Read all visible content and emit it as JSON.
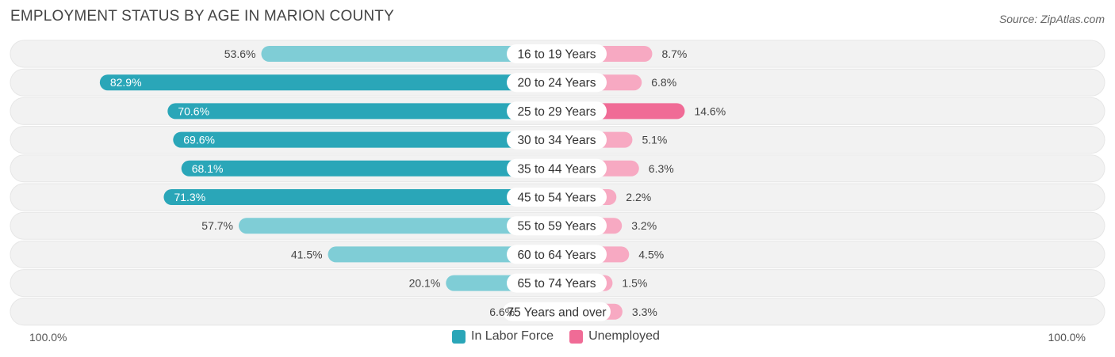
{
  "header": {
    "title": "EMPLOYMENT STATUS BY AGE IN MARION COUNTY",
    "source": "Source: ZipAtlas.com"
  },
  "axis": {
    "left_label": "100.0%",
    "right_label": "100.0%"
  },
  "legend": {
    "items": [
      {
        "label": "In Labor Force",
        "color": "#2aa6b8"
      },
      {
        "label": "Unemployed",
        "color": "#f06b96"
      }
    ]
  },
  "chart_data": {
    "type": "bar",
    "orientation": "diverging-horizontal",
    "title": "EMPLOYMENT STATUS BY AGE IN MARION COUNTY",
    "categories": [
      "16 to 19 Years",
      "20 to 24 Years",
      "25 to 29 Years",
      "30 to 34 Years",
      "35 to 44 Years",
      "45 to 54 Years",
      "55 to 59 Years",
      "60 to 64 Years",
      "65 to 74 Years",
      "75 Years and over"
    ],
    "series": [
      {
        "name": "In Labor Force",
        "values": [
          53.6,
          82.9,
          70.6,
          69.6,
          68.1,
          71.3,
          57.7,
          41.5,
          20.1,
          6.6
        ],
        "labels": [
          "53.6%",
          "82.9%",
          "70.6%",
          "69.6%",
          "68.1%",
          "71.3%",
          "57.7%",
          "41.5%",
          "20.1%",
          "6.6%"
        ]
      },
      {
        "name": "Unemployed",
        "values": [
          8.7,
          6.8,
          14.6,
          5.1,
          6.3,
          2.2,
          3.2,
          4.5,
          1.5,
          3.3
        ],
        "labels": [
          "8.7%",
          "6.8%",
          "14.6%",
          "5.1%",
          "6.3%",
          "2.2%",
          "3.2%",
          "4.5%",
          "1.5%",
          "3.3%"
        ]
      }
    ],
    "xlim": [
      0,
      100
    ],
    "legend_position": "bottom-center",
    "colors": {
      "labor_strong": "#2aa6b8",
      "labor_light": "#7fcdd6",
      "unemp_strong": "#f06b96",
      "unemp_light": "#f7a9c2",
      "row_bg": "#f2f2f2"
    }
  }
}
